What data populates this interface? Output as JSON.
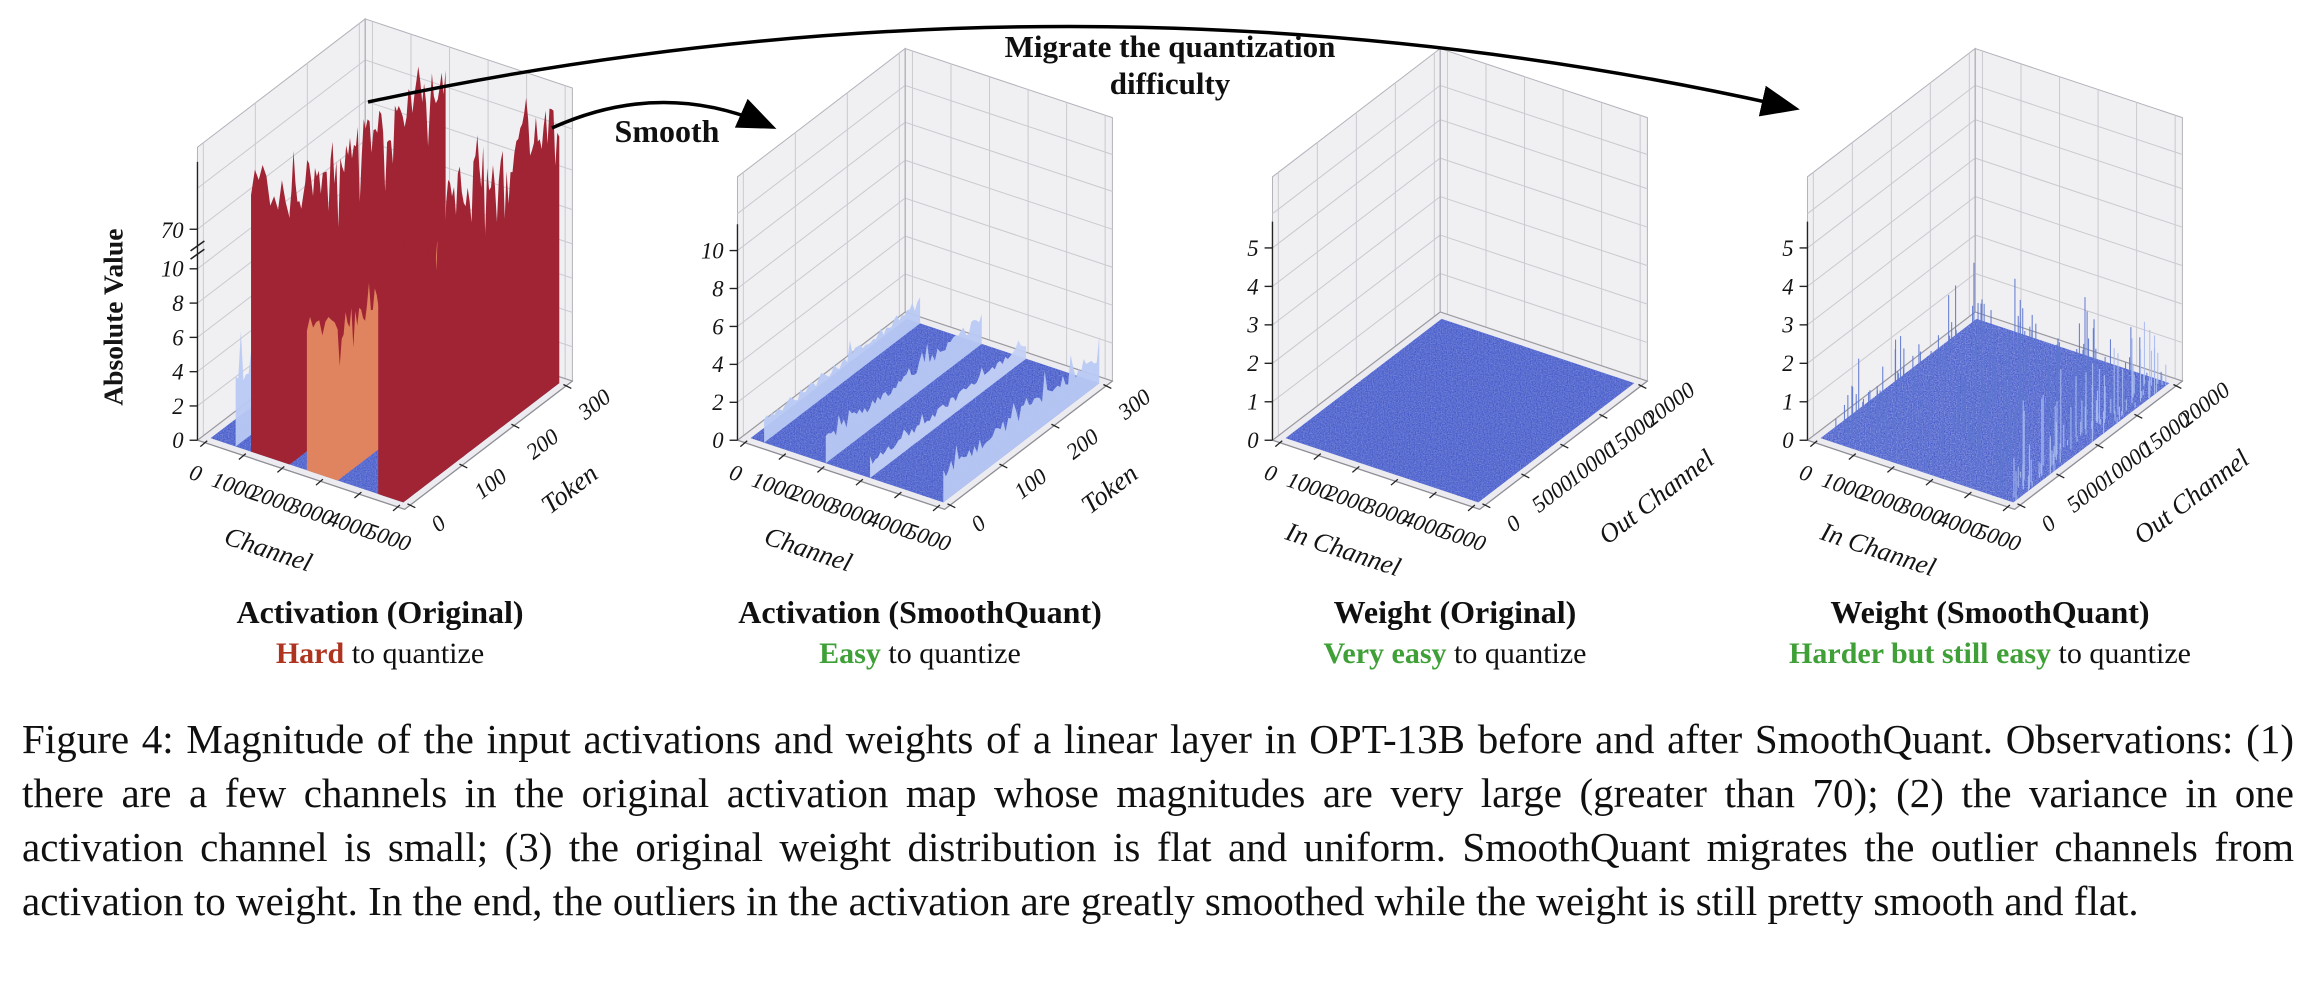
{
  "annotations": {
    "migrate_line1": "Migrate the quantization",
    "migrate_line2": "difficulty",
    "smooth": "Smooth"
  },
  "colors": {
    "hard_red": "#ae3420",
    "easy_green": "#3fa037",
    "outlier_dark_red": "#a02433",
    "outlier_orange": "#e0835f",
    "floor_blue": "#4156c8",
    "ridge_light_blue": "#b8c9f3"
  },
  "chart_data": [
    {
      "type": "heatmap",
      "render": "3d-surface",
      "title": "Activation (Original)",
      "verdict": {
        "emph": "Hard",
        "rest": " to quantize",
        "color": "#ae3420"
      },
      "xlabel": "Channel",
      "x_ticks": [
        "0",
        "1000",
        "2000",
        "3000",
        "4000",
        "5000"
      ],
      "x_range": [
        0,
        5000
      ],
      "ylabel": "Token",
      "y_ticks": [
        "0",
        "100",
        "200",
        "300"
      ],
      "y_range": [
        0,
        300
      ],
      "zlabel": "Absolute Value",
      "z_ticks": [
        "0",
        "2",
        "4",
        "6",
        "8",
        "10"
      ],
      "z_break": true,
      "z_top_tick": "70",
      "z_range": [
        0,
        70
      ],
      "surface": {
        "base_color": "#4156c8",
        "baseline_note": "low noise floor (~0.5 absolute value) across all channels and tokens",
        "features": [
          {
            "kind": "ridge",
            "channel": 650,
            "height_frac": 0.3,
            "approx_value": 3,
            "color": "#b8c9f3"
          },
          {
            "kind": "wall",
            "channel_start": 1050,
            "channel_end": 2050,
            "height_frac": 1.0,
            "approx_value": 70,
            "color": "#a02433"
          },
          {
            "kind": "wall",
            "channel_start": 2500,
            "channel_end": 3300,
            "height_frac": 0.56,
            "approx_value": 35,
            "color": "#e0835f"
          },
          {
            "kind": "spike-pair",
            "channel": 3750,
            "height_frac": 0.45,
            "approx_value": 5,
            "color": "#cfdbf6"
          },
          {
            "kind": "wall",
            "channel_start": 4350,
            "channel_end": 5000,
            "height_frac": 1.0,
            "approx_value": 70,
            "color": "#a02433"
          }
        ]
      }
    },
    {
      "type": "heatmap",
      "render": "3d-surface",
      "title": "Activation (SmoothQuant)",
      "verdict": {
        "emph": "Easy",
        "rest": " to quantize",
        "color": "#3fa037"
      },
      "xlabel": "Channel",
      "x_ticks": [
        "0",
        "1000",
        "2000",
        "3000",
        "4000",
        "5000"
      ],
      "x_range": [
        0,
        5000
      ],
      "ylabel": "Token",
      "y_ticks": [
        "0",
        "100",
        "200",
        "300"
      ],
      "y_range": [
        0,
        300
      ],
      "zlabel": "",
      "z_ticks": [
        "0",
        "2",
        "4",
        "6",
        "8",
        "10"
      ],
      "z_break": false,
      "z_range": [
        0,
        10
      ],
      "surface": {
        "base_color": "#4156c8",
        "baseline_note": "uniform smoothed activation (~1 absolute value) with a few faint channel ridges",
        "features": [
          {
            "kind": "ridge",
            "channel": 350,
            "height_frac": 0.1,
            "approx_value": 1.5,
            "color": "#b8c9f3"
          },
          {
            "kind": "ridge",
            "channel": 1950,
            "height_frac": 0.12,
            "approx_value": 1.8,
            "color": "#b8c9f3"
          },
          {
            "kind": "ridge",
            "channel": 3100,
            "height_frac": 0.07,
            "approx_value": 1.2,
            "color": "#c3d1f5"
          },
          {
            "kind": "ridge",
            "channel": 5000,
            "height_frac": 0.14,
            "approx_value": 2,
            "color": "#b8c9f3"
          }
        ]
      }
    },
    {
      "type": "heatmap",
      "render": "3d-surface",
      "title": "Weight (Original)",
      "verdict": {
        "emph": "Very easy",
        "rest": " to quantize",
        "color": "#3fa037"
      },
      "xlabel": "In Channel",
      "x_ticks": [
        "0",
        "1000",
        "2000",
        "3000",
        "4000",
        "5000"
      ],
      "x_range": [
        0,
        5000
      ],
      "ylabel": "Out Channel",
      "y_ticks": [
        "0",
        "5000",
        "10000",
        "15000",
        "20000"
      ],
      "y_range": [
        0,
        20000
      ],
      "zlabel": "",
      "z_ticks": [
        "0",
        "1",
        "2",
        "3",
        "4",
        "5"
      ],
      "z_break": false,
      "z_range": [
        0,
        5
      ],
      "surface": {
        "base_color": "#4156c8",
        "baseline_note": "completely flat, uniform weight magnitude (~0.3) over all in/out channels",
        "features": []
      }
    },
    {
      "type": "heatmap",
      "render": "3d-surface",
      "title": "Weight (SmoothQuant)",
      "verdict": {
        "emph": "Harder but still easy",
        "rest": " to quantize",
        "color": "#3fa037"
      },
      "xlabel": "In Channel",
      "x_ticks": [
        "0",
        "1000",
        "2000",
        "3000",
        "4000",
        "5000"
      ],
      "x_range": [
        0,
        5000
      ],
      "ylabel": "Out Channel",
      "y_ticks": [
        "0",
        "5000",
        "10000",
        "15000",
        "20000"
      ],
      "y_range": [
        0,
        20000
      ],
      "zlabel": "",
      "z_ticks": [
        "0",
        "1",
        "2",
        "3",
        "4",
        "5"
      ],
      "z_break": false,
      "z_range": [
        0,
        5
      ],
      "surface": {
        "base_color": "#4156c8",
        "baseline_note": "mostly flat weight magnitude with many small scattered spikes (up to ~1.5)",
        "features": [
          {
            "kind": "spikes",
            "count": 300,
            "height_frac_max": 0.22,
            "color": "#5d76cf"
          },
          {
            "kind": "spikes",
            "count": 80,
            "height_frac_max": 0.3,
            "u_range": [
              0.88,
              0.97
            ],
            "color": "#a9bcf0"
          }
        ]
      }
    }
  ],
  "caption": {
    "text": "Figure 4: Magnitude of the input activations and weights of a linear layer in OPT-13B before and after SmoothQuant. Observations: (1) there are a few channels in the original activation map whose magnitudes are very large (greater than 70); (2) the variance in one activation channel is small; (3) the original weight distribution is flat and uniform. SmoothQuant migrates the outlier channels from activation to weight. In the end, the outliers in the activation are greatly smoothed while the weight is still pretty smooth and flat."
  }
}
